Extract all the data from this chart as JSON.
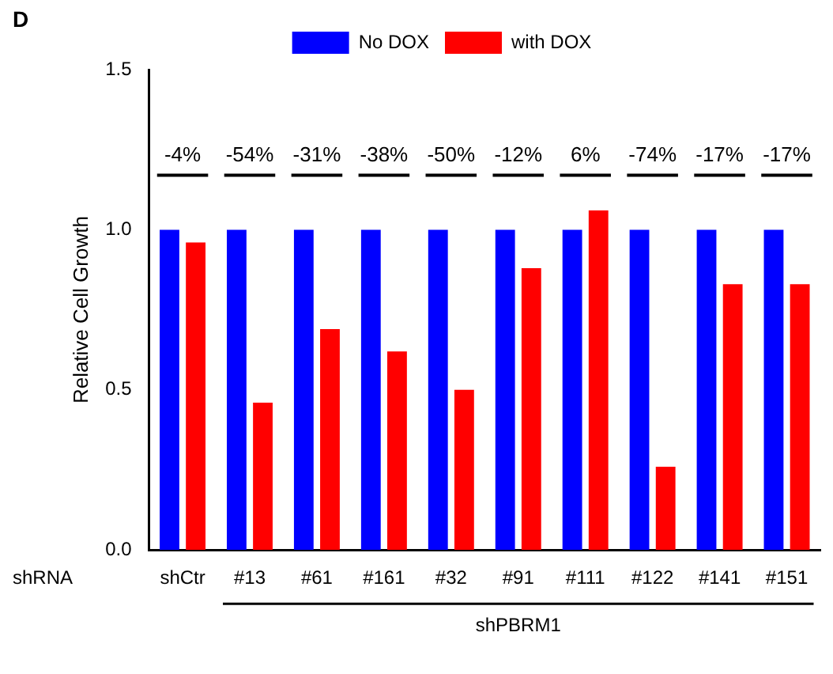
{
  "chart_data": {
    "type": "bar",
    "ylabel": "Relative Cell Growth",
    "categories": [
      "shCtr",
      "#13",
      "#61",
      "#161",
      "#32",
      "#91",
      "#111",
      "#122",
      "#141",
      "#151"
    ],
    "series": [
      {
        "name": "No DOX",
        "color": "#0000ff",
        "values": [
          1,
          1,
          1,
          1,
          1,
          1,
          1,
          1,
          1,
          1
        ]
      },
      {
        "name": "with DOX",
        "color": "#ff0000",
        "values": [
          0.96,
          0.46,
          0.69,
          0.62,
          0.5,
          0.88,
          1.06,
          0.26,
          0.83,
          0.83
        ]
      }
    ],
    "ylim": [
      0,
      1.5
    ],
    "yticks": [
      {
        "value": 0,
        "label": "0.0"
      },
      {
        "value": 0.5,
        "label": "0.5"
      },
      {
        "value": 1,
        "label": "1.0"
      },
      {
        "value": 1.5,
        "label": "1.5"
      }
    ],
    "grid": false,
    "legend": "top",
    "annotations": [
      "D",
      "shRNA",
      "shPBRM1",
      "-4%",
      "-54%",
      "-31%",
      "-38%",
      "-50%",
      "-12%",
      "6%",
      "-74%",
      "-17%",
      "-17%"
    ]
  }
}
